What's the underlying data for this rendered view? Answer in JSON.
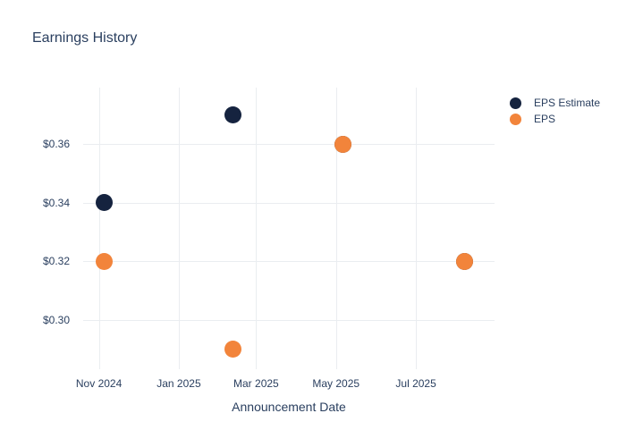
{
  "chart_data": {
    "type": "scatter",
    "title": "Earnings History",
    "xlabel": "Announcement Date",
    "ylabel": "",
    "grid": true,
    "legend_position": "right",
    "background_color": "#ffffff",
    "grid_color": "#eaedf0",
    "text_color": "#2a3f5f",
    "x_range": [
      "2024-10-20",
      "2025-08-30"
    ],
    "y_range": [
      0.2831,
      0.3794
    ],
    "x_ticks": [
      {
        "date": "2024-11-01",
        "label": "Nov 2024"
      },
      {
        "date": "2025-01-01",
        "label": "Jan 2025"
      },
      {
        "date": "2025-03-01",
        "label": "Mar 2025"
      },
      {
        "date": "2025-05-01",
        "label": "May 2025"
      },
      {
        "date": "2025-07-01",
        "label": "Jul 2025"
      }
    ],
    "y_ticks": [
      {
        "value": 0.3,
        "label": "$0.30"
      },
      {
        "value": 0.32,
        "label": "$0.32"
      },
      {
        "value": 0.34,
        "label": "$0.34"
      },
      {
        "value": 0.36,
        "label": "$0.36"
      }
    ],
    "series": [
      {
        "name": "EPS Estimate",
        "color": "#15233f",
        "points": [
          {
            "x": "2024-11-05",
            "y": 0.34
          },
          {
            "x": "2025-02-11",
            "y": 0.37
          },
          {
            "x": "2025-05-06",
            "y": 0.36
          },
          {
            "x": "2025-08-07",
            "y": 0.32
          }
        ]
      },
      {
        "name": "EPS",
        "color": "#f2843b",
        "points": [
          {
            "x": "2024-11-05",
            "y": 0.32
          },
          {
            "x": "2025-02-11",
            "y": 0.29
          },
          {
            "x": "2025-05-06",
            "y": 0.36
          },
          {
            "x": "2025-08-07",
            "y": 0.32
          }
        ]
      }
    ]
  }
}
